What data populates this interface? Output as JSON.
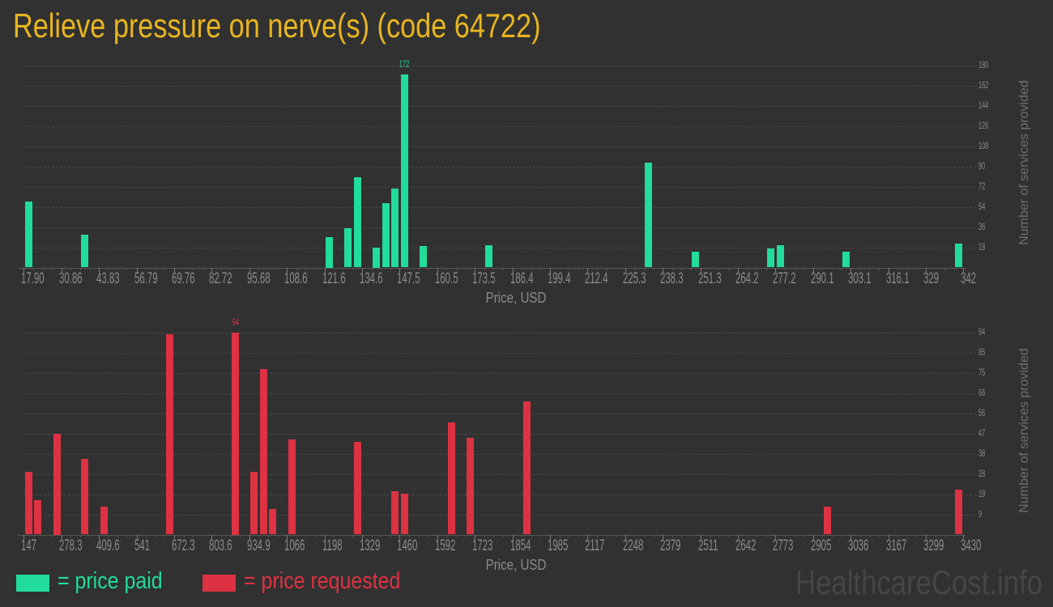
{
  "page": {
    "title": "Relieve pressure on nerve(s) (code 64722)",
    "watermark": "HealthcareCost.info"
  },
  "colors": {
    "background": "#313131",
    "title": "#e8b520",
    "price_paid": "#21dc9b",
    "price_requested": "#dc3242"
  },
  "legend": {
    "paid_label": "= price paid",
    "requested_label": "= price requested"
  },
  "chart_data": [
    {
      "type": "bar",
      "title": "price paid",
      "color": "#21dc9b",
      "xlabel": "Price, USD",
      "ylabel": "Number of services provided",
      "xlim": [
        17.9,
        342
      ],
      "ylim": [
        0,
        180
      ],
      "bin_width": 3.241,
      "grid": true,
      "legend_position": "bottom-left",
      "x_tick_labels": [
        "17.90",
        "30.86",
        "43.83",
        "56.79",
        "69.76",
        "82.72",
        "95.68",
        "108.6",
        "121.6",
        "134.6",
        "147.5",
        "160.5",
        "173.5",
        "186.4",
        "199.4",
        "212.4",
        "225.3",
        "238.3",
        "251.3",
        "264.2",
        "277.2",
        "290.1",
        "303.1",
        "316.1",
        "329",
        "342"
      ],
      "y_tick_labels": [
        "18",
        "36",
        "54",
        "72",
        "90",
        "108",
        "126",
        "144",
        "162",
        "180"
      ],
      "x": [
        17.9,
        37.35,
        121.6,
        128.1,
        131.3,
        137.8,
        141.1,
        144.3,
        147.5,
        154.0,
        176.7,
        231.8,
        248.0,
        273.9,
        277.2,
        299.9,
        338.8
      ],
      "values": [
        59,
        29,
        27,
        35,
        80,
        18,
        57,
        70,
        172,
        19,
        20,
        93,
        14,
        17,
        20,
        14,
        21
      ],
      "annotation": {
        "text": "172",
        "x": 147.5
      }
    },
    {
      "type": "bar",
      "title": "price requested",
      "color": "#dc3242",
      "xlabel": "Price, USD",
      "ylabel": "Number of services provided",
      "xlim": [
        147,
        3430
      ],
      "ylim": [
        0,
        94
      ],
      "bin_width": 32.83,
      "grid": true,
      "legend_position": "bottom-left",
      "x_tick_labels": [
        "147",
        "278.3",
        "409.6",
        "541",
        "672.3",
        "803.6",
        "934.9",
        "1066",
        "1198",
        "1329",
        "1460",
        "1592",
        "1723",
        "1854",
        "1985",
        "2117",
        "2248",
        "2379",
        "2511",
        "2642",
        "2773",
        "2905",
        "3036",
        "3167",
        "3299",
        "3430"
      ],
      "y_tick_labels": [
        "9",
        "19",
        "28",
        "38",
        "47",
        "56",
        "66",
        "75",
        "85",
        "94"
      ],
      "x": [
        147,
        179.8,
        245.5,
        344,
        409.6,
        639.5,
        869.3,
        934.9,
        967.8,
        1000.6,
        1066,
        1296,
        1427,
        1460,
        1624,
        1690,
        1887,
        2937,
        3397
      ],
      "values": [
        29,
        16,
        47,
        35,
        13,
        93,
        94,
        29,
        77,
        12,
        44,
        43,
        20,
        19,
        52,
        45,
        62,
        13,
        21
      ],
      "annotation": {
        "text": "94",
        "x": 869.3
      }
    }
  ]
}
